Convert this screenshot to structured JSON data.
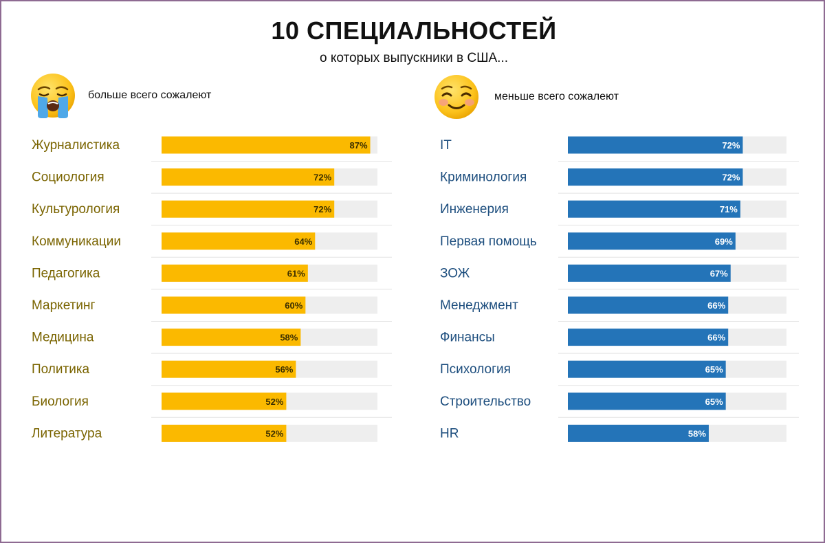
{
  "title": "10 СПЕЦИАЛЬНОСТЕЙ",
  "subtitle": "о которых выпускники в США...",
  "colors": {
    "left_bar": "#fbb900",
    "left_text": "#7a6400",
    "left_value_text": "#3a2e00",
    "right_bar": "#2474b8",
    "right_text": "#1d4e7e",
    "right_value_text": "#ffffff",
    "track": "#eeeeee",
    "separator": "#e3e3e3"
  },
  "legend": {
    "left": {
      "icon": "crying-face-icon",
      "label": "больше всего сожалеют"
    },
    "right": {
      "icon": "smiling-face-icon",
      "label": "меньше всего сожалеют"
    }
  },
  "chart_data": [
    {
      "type": "bar",
      "orientation": "horizontal",
      "title": "больше всего сожалеют",
      "categories": [
        "Журналистика",
        "Социология",
        "Культурология",
        "Коммуникации",
        "Педагогика",
        "Маркетинг",
        "Медицина",
        "Политика",
        "Биология",
        "Литература"
      ],
      "values": [
        87,
        72,
        72,
        64,
        61,
        60,
        58,
        56,
        52,
        52
      ],
      "value_labels": [
        "87%",
        "72%",
        "72%",
        "64%",
        "61%",
        "60%",
        "58%",
        "56%",
        "52%",
        "52%"
      ],
      "xlim": [
        0,
        90
      ],
      "unit": "%"
    },
    {
      "type": "bar",
      "orientation": "horizontal",
      "title": "меньше всего сожалеют",
      "categories": [
        "IT",
        "Криминология",
        "Инженерия",
        "Первая помощь",
        "ЗОЖ",
        "Менеджмент",
        "Финансы",
        "Психология",
        "Строительство",
        "HR"
      ],
      "values": [
        72,
        72,
        71,
        69,
        67,
        66,
        66,
        65,
        65,
        58
      ],
      "value_labels": [
        "72%",
        "72%",
        "71%",
        "69%",
        "67%",
        "66%",
        "66%",
        "65%",
        "65%",
        "58%"
      ],
      "xlim": [
        0,
        90
      ],
      "unit": "%"
    }
  ]
}
